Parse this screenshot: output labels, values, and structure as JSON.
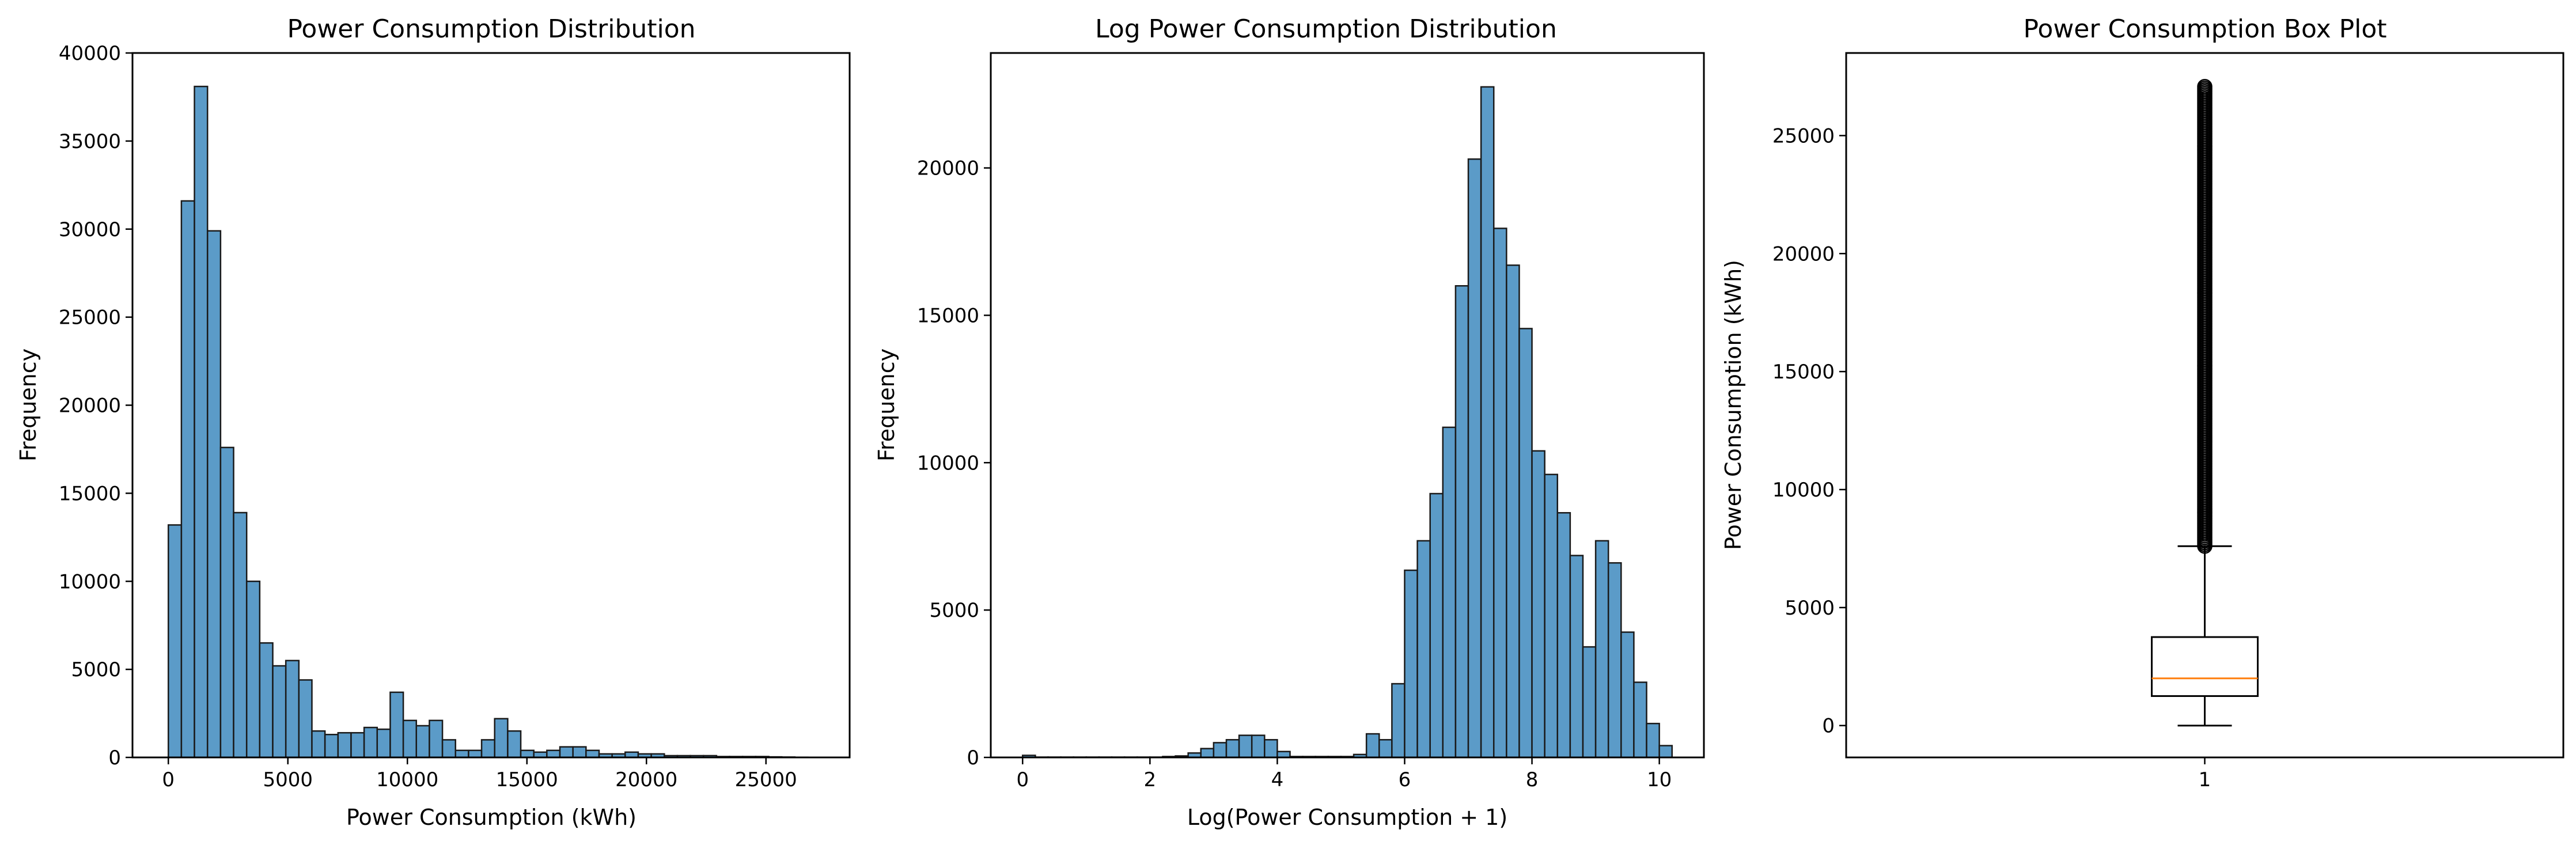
{
  "colors": {
    "bar_fill": "#5b9bc8",
    "bar_edge": "#1a1a1a",
    "median_line": "#ff7f0e",
    "axes": "#000000",
    "background": "#ffffff"
  },
  "chart_data": [
    {
      "type": "bar",
      "title": "Power Consumption Distribution",
      "xlabel": "Power Consumption (kWh)",
      "ylabel": "Frequency",
      "bin_start": 0,
      "bin_width": 546,
      "values": [
        13200,
        31600,
        38100,
        29900,
        17600,
        13900,
        10000,
        6500,
        5200,
        5500,
        4400,
        1500,
        1300,
        1400,
        1400,
        1700,
        1600,
        3700,
        2100,
        1800,
        2100,
        1000,
        400,
        400,
        1000,
        2200,
        1500,
        400,
        300,
        400,
        600,
        600,
        400,
        200,
        200,
        300,
        200,
        200,
        100,
        100,
        100,
        100,
        50,
        50,
        50,
        50,
        30,
        20,
        10,
        5
      ],
      "xlim": [
        -1500,
        28500
      ],
      "ylim": [
        0,
        40000
      ],
      "xticks": [
        0,
        5000,
        10000,
        15000,
        20000,
        25000
      ],
      "yticks": [
        0,
        5000,
        10000,
        15000,
        20000,
        25000,
        30000,
        35000,
        40000
      ],
      "grid": false
    },
    {
      "type": "bar",
      "title": "Log Power Consumption Distribution",
      "xlabel": "Log(Power Consumption + 1)",
      "ylabel": "Frequency",
      "bin_start": 0,
      "bin_width": 0.2,
      "values": [
        70,
        10,
        10,
        10,
        10,
        10,
        10,
        10,
        10,
        10,
        10,
        30,
        50,
        150,
        300,
        500,
        600,
        750,
        750,
        600,
        200,
        30,
        30,
        30,
        30,
        30,
        100,
        800,
        600,
        2500,
        6350,
        7350,
        8950,
        11200,
        16000,
        20300,
        22750,
        17950,
        16700,
        14550,
        10400,
        9600,
        8300,
        6850,
        3750,
        7350,
        6600,
        4250,
        2550,
        1150,
        400
      ],
      "xlim": [
        -0.5,
        10.7
      ],
      "ylim": [
        0,
        23900
      ],
      "xticks": [
        0,
        2,
        4,
        6,
        8,
        10
      ],
      "yticks": [
        0,
        5000,
        10000,
        15000,
        20000
      ],
      "grid": false
    },
    {
      "type": "box",
      "title": "Power Consumption Box Plot",
      "xlabel": "",
      "ylabel": "Power Consumption (kWh)",
      "category": "1",
      "whisker_low": 0,
      "q1": 1250,
      "median": 2000,
      "q3": 3750,
      "whisker_high": 7600,
      "outlier_min": 7600,
      "outlier_max": 27100,
      "xticks": [
        "1"
      ],
      "ylim": [
        -1350,
        28500
      ],
      "yticks": [
        0,
        5000,
        10000,
        15000,
        20000,
        25000
      ],
      "grid": false
    }
  ]
}
